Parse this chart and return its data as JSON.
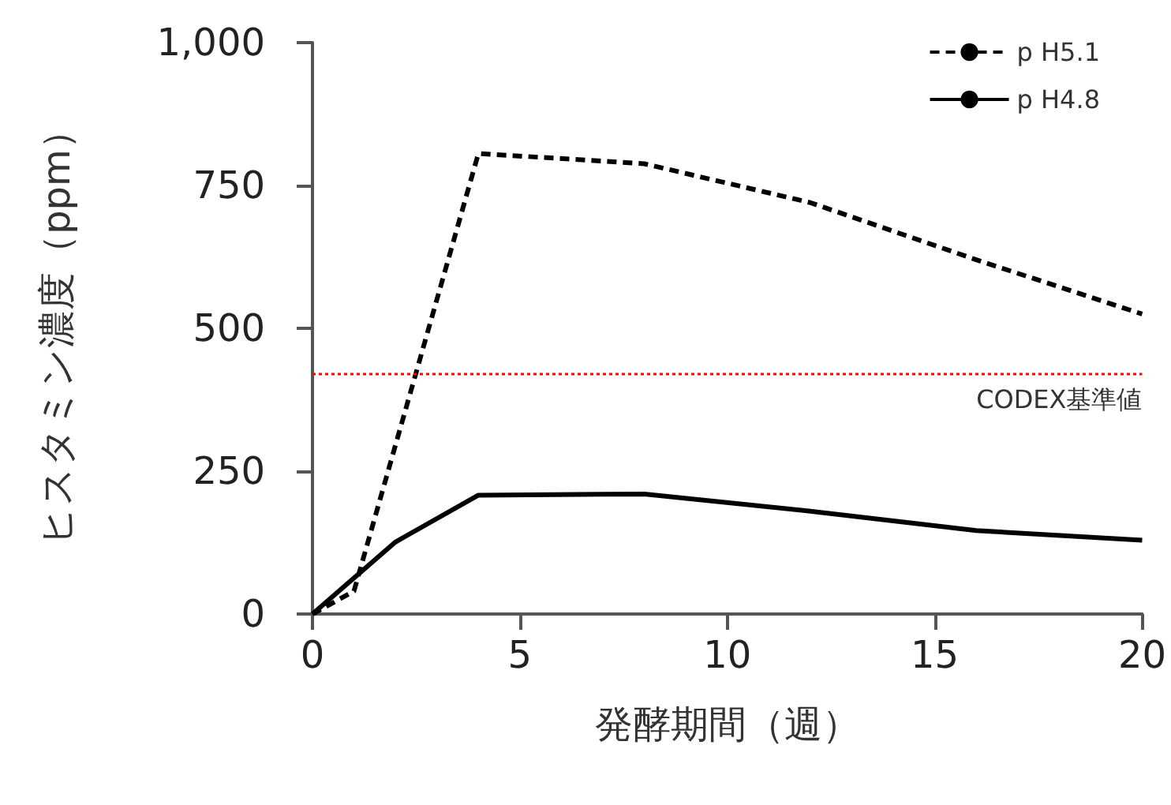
{
  "chart_data": {
    "type": "line",
    "xlabel": "発酵期間（週）",
    "ylabel": "ヒスタミン濃度（ppm）",
    "x": [
      0,
      1,
      4,
      8,
      12,
      16,
      20
    ],
    "series": [
      {
        "name": "p H5.1",
        "color": "#000000",
        "line_style": "dashed",
        "values": [
          0,
          40,
          806,
          788,
          720,
          620,
          525
        ]
      },
      {
        "name": "p H4.8",
        "color": "#000000",
        "line_style": "solid",
        "x": [
          0,
          2,
          4,
          8,
          12,
          16,
          20
        ],
        "values": [
          0,
          126,
          208,
          210,
          180,
          146,
          129
        ]
      }
    ],
    "xlim": [
      0,
      20
    ],
    "xticks": [
      0,
      5,
      10,
      15,
      20
    ],
    "ylim": [
      0,
      1000
    ],
    "yticks": [
      0,
      250,
      500,
      750,
      {
        "value": 1000,
        "label": "1,000"
      }
    ],
    "ref_lines": [
      {
        "axis": "y",
        "value": 420,
        "label": "CODEX基準値",
        "color": "#ff0000",
        "line_style": "dotted"
      }
    ],
    "grid": false,
    "legend": "top right",
    "marker": "none"
  }
}
